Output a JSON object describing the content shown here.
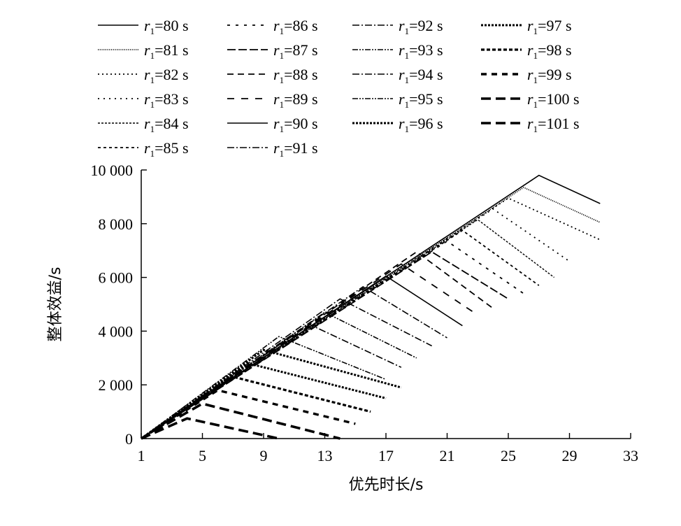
{
  "chart_data": {
    "type": "line",
    "xlabel": "优先时长/s",
    "ylabel": "整体效益/s",
    "xlim": [
      1,
      33
    ],
    "ylim": [
      0,
      10000
    ],
    "xticks": [
      "1",
      "5",
      "9",
      "13",
      "17",
      "21",
      "25",
      "29",
      "33"
    ],
    "yticks": [
      "0",
      "2 000",
      "4 000",
      "6 000",
      "8 000",
      "10 000"
    ],
    "legend_position": "top",
    "grid": false,
    "series": [
      {
        "name": "80 s",
        "peak_x": 27.0,
        "peak_y": 9800,
        "end_x": 31,
        "end_y": 8750,
        "style": "solid"
      },
      {
        "name": "81 s",
        "peak_x": 26.0,
        "peak_y": 9350,
        "end_x": 31,
        "end_y": 8050,
        "style": "fine-dot"
      },
      {
        "name": "82 s",
        "peak_x": 25.0,
        "peak_y": 8950,
        "end_x": 31,
        "end_y": 7400,
        "style": "dot"
      },
      {
        "name": "83 s",
        "peak_x": 24.0,
        "peak_y": 8550,
        "end_x": 29,
        "end_y": 6600,
        "style": "sparse-dot"
      },
      {
        "name": "84 s",
        "peak_x": 23.0,
        "peak_y": 8150,
        "end_x": 28,
        "end_y": 6000,
        "style": "fine-dash"
      },
      {
        "name": "85 s",
        "peak_x": 22.0,
        "peak_y": 7750,
        "end_x": 27,
        "end_y": 5700,
        "style": "short-dash"
      },
      {
        "name": "86 s",
        "peak_x": 21.0,
        "peak_y": 7350,
        "end_x": 26,
        "end_y": 5400,
        "style": "spaced-dash"
      },
      {
        "name": "87 s",
        "peak_x": 20.0,
        "peak_y": 6950,
        "end_x": 25,
        "end_y": 5200,
        "style": "long-dash"
      },
      {
        "name": "88 s",
        "peak_x": 19.0,
        "peak_y": 6950,
        "end_x": 24,
        "end_y": 4850,
        "style": "dash"
      },
      {
        "name": "89 s",
        "peak_x": 18.0,
        "peak_y": 6500,
        "end_x": 23,
        "end_y": 4600,
        "style": "wide-dash"
      },
      {
        "name": "90 s",
        "peak_x": 17.0,
        "peak_y": 6050,
        "end_x": 22,
        "end_y": 4200,
        "style": "solid"
      },
      {
        "name": "91 s",
        "peak_x": 15.5,
        "peak_y": 5650,
        "end_x": 21,
        "end_y": 3750,
        "style": "dash-dot"
      },
      {
        "name": "92 s",
        "peak_x": 14.0,
        "peak_y": 5200,
        "end_x": 20,
        "end_y": 3450,
        "style": "dash-dot"
      },
      {
        "name": "93 s",
        "peak_x": 13.0,
        "peak_y": 4700,
        "end_x": 19,
        "end_y": 3000,
        "style": "dash-dot-dot"
      },
      {
        "name": "94 s",
        "peak_x": 12.0,
        "peak_y": 4250,
        "end_x": 18,
        "end_y": 2650,
        "style": "dash-dot"
      },
      {
        "name": "95 s",
        "peak_x": 10.0,
        "peak_y": 3800,
        "end_x": 17,
        "end_y": 2200,
        "style": "dash-dot-dot"
      },
      {
        "name": "96 s",
        "peak_x": 9.0,
        "peak_y": 3300,
        "end_x": 18,
        "end_y": 1900,
        "style": "heavy-dot"
      },
      {
        "name": "97 s",
        "peak_x": 8.0,
        "peak_y": 2800,
        "end_x": 17,
        "end_y": 1500,
        "style": "heavy-dot"
      },
      {
        "name": "98 s",
        "peak_x": 7.0,
        "peak_y": 2300,
        "end_x": 16,
        "end_y": 1000,
        "style": "heavy-short-dash"
      },
      {
        "name": "99 s",
        "peak_x": 6.0,
        "peak_y": 1800,
        "end_x": 15,
        "end_y": 550,
        "style": "heavy-dash"
      },
      {
        "name": "100 s",
        "peak_x": 5.0,
        "peak_y": 1300,
        "end_x": 14,
        "end_y": 0,
        "style": "heavy-long-dash"
      },
      {
        "name": "101 s",
        "peak_x": 4.0,
        "peak_y": 750,
        "end_x": 10,
        "end_y": 0,
        "style": "heavy-long-dash"
      }
    ]
  }
}
